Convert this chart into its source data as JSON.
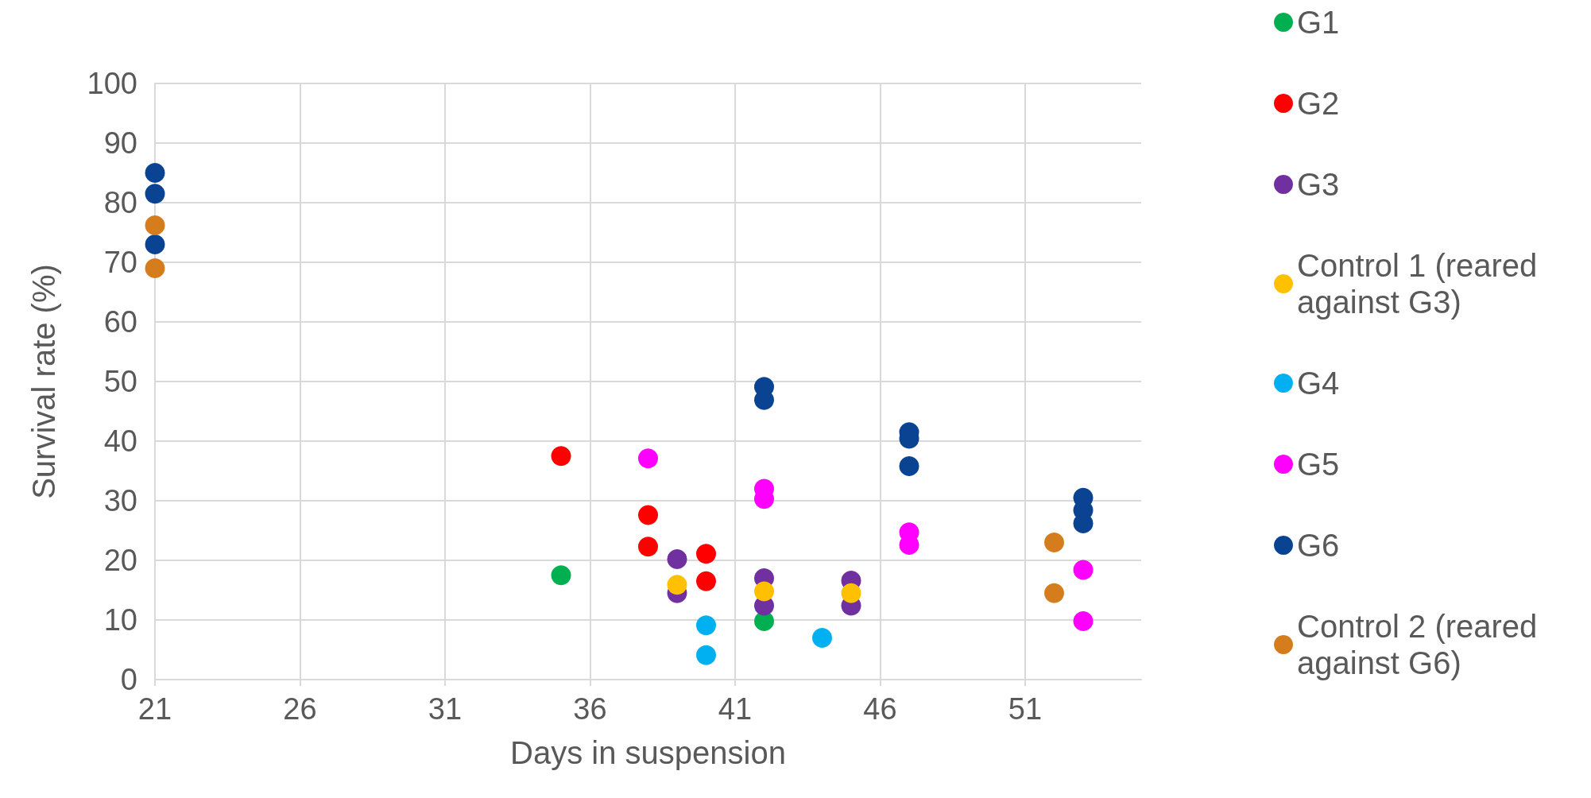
{
  "chart_data": {
    "type": "scatter",
    "xlabel": "Days in suspension",
    "ylabel": "Survival rate (%)",
    "xlim": [
      21,
      55
    ],
    "xticks": [
      21,
      26,
      31,
      36,
      41,
      46,
      51
    ],
    "ylim": [
      0,
      100
    ],
    "yticks": [
      0,
      10,
      20,
      30,
      40,
      50,
      60,
      70,
      80,
      90,
      100
    ],
    "grid": true,
    "legend": "right",
    "marker": "circle",
    "series": [
      {
        "name": "G1",
        "color": "#00b050",
        "x": [
          35,
          42
        ],
        "values": [
          17.5,
          9.8
        ]
      },
      {
        "name": "G2",
        "color": "#ff0000",
        "x": [
          35,
          38,
          38,
          40,
          40
        ],
        "values": [
          37.5,
          27.6,
          22.3,
          21.1,
          16.5
        ]
      },
      {
        "name": "G3",
        "color": "#7030a0",
        "x": [
          39,
          39,
          42,
          42,
          45,
          45
        ],
        "values": [
          20.2,
          14.5,
          17.0,
          12.4,
          16.6,
          12.4
        ]
      },
      {
        "name": "Control 1 (reared against G3)",
        "color": "#ffc000",
        "x": [
          39,
          42,
          45
        ],
        "values": [
          15.9,
          14.8,
          14.5
        ]
      },
      {
        "name": "G4",
        "color": "#00b0f0",
        "x": [
          40,
          40,
          44
        ],
        "values": [
          9.1,
          4.1,
          7.0
        ]
      },
      {
        "name": "G5",
        "color": "#ff00ff",
        "x": [
          38,
          42,
          42,
          47,
          47,
          53,
          53
        ],
        "values": [
          37.1,
          32.0,
          30.3,
          24.7,
          22.6,
          18.4,
          9.8
        ]
      },
      {
        "name": "G6",
        "color": "#0a4391",
        "x": [
          21,
          21,
          21,
          42,
          42,
          47,
          47,
          47,
          53,
          53,
          53
        ],
        "values": [
          85.0,
          81.5,
          73.0,
          49.1,
          46.9,
          41.5,
          40.4,
          35.8,
          30.5,
          28.4,
          26.2
        ]
      },
      {
        "name": "Control 2 (reared against G6)",
        "color": "#d57d1d",
        "x": [
          21,
          21,
          52,
          52
        ],
        "values": [
          76.2,
          69.0,
          23.0,
          14.5
        ]
      }
    ]
  }
}
